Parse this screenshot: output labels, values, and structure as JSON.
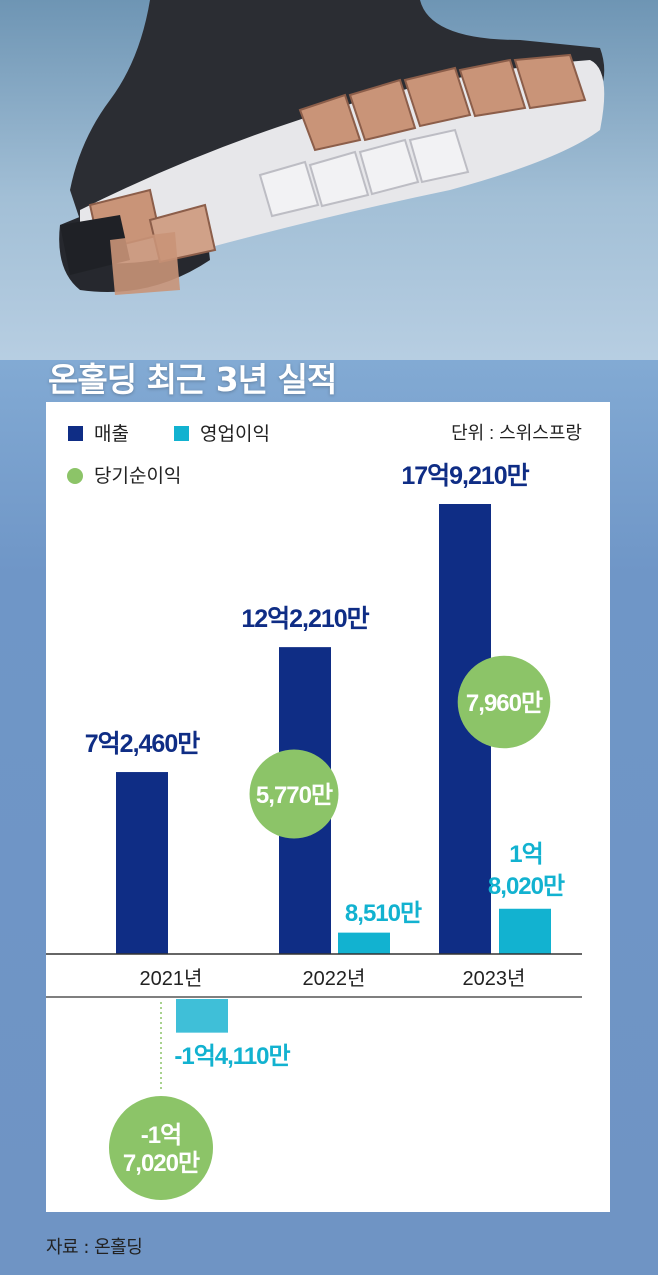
{
  "title": "온홀딩 최근 3년 실적",
  "unit_label": "단위 : 스위스프랑",
  "source": "자료 : 온홀딩",
  "colors": {
    "revenue": "#0f2d85",
    "operating_profit": "#12b2d0",
    "net_income": "#8cc468",
    "axis": "#333333"
  },
  "chart_data": {
    "type": "bar",
    "categories": [
      "2021년",
      "2022년",
      "2023년"
    ],
    "series": [
      {
        "name": "매출",
        "marker": "square",
        "values": [
          724600000,
          1222100000,
          1792100000
        ],
        "labels": [
          "7억2,460만",
          "12억2,210만",
          "17억9,210만"
        ]
      },
      {
        "name": "영업이익",
        "marker": "square",
        "values": [
          -141100000,
          85100000,
          180200000
        ],
        "labels": [
          "-1억4,110만",
          "8,510만",
          "1억\n8,020만"
        ]
      },
      {
        "name": "당기순이익",
        "marker": "circle",
        "values": [
          -170200000,
          57700000,
          79600000
        ],
        "labels": [
          "-1억\n7,020만",
          "5,770만",
          "7,960만"
        ]
      }
    ],
    "legend_position": "top-left",
    "grid": false
  }
}
